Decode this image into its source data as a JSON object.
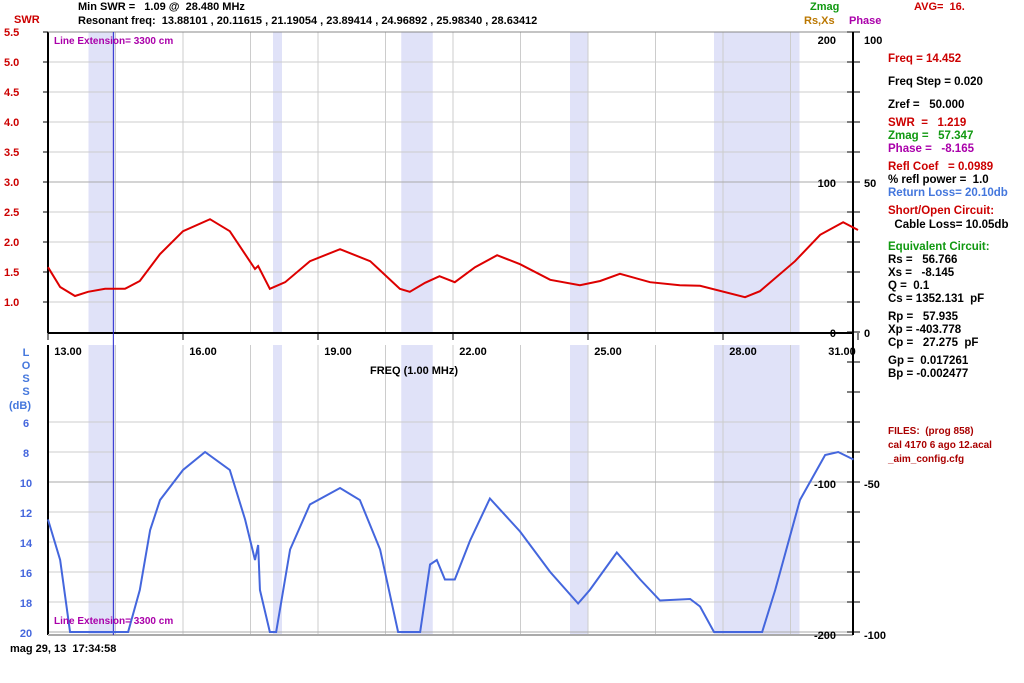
{
  "header": {
    "min_swr": "Min SWR =   1.09 @  28.480 MHz",
    "resonant": "Resonant freq:  13.88101 , 20.11615 , 21.19054 , 23.89414 , 24.96892 , 25.98340 , 28.63412",
    "swr_label": "SWR",
    "zmag_label": "Zmag",
    "rsxs_label": "Rs,Xs",
    "phase_label": "Phase",
    "avg": "AVG=  16."
  },
  "line_extension": "Line Extension= 3300 cm",
  "timestamp": "mag 29, 13  17:34:58",
  "readout": {
    "freq": "Freq = 14.452",
    "freq_step": "Freq Step = 0.020",
    "zref": "Zref =   50.000",
    "swr": "SWR  =   1.219",
    "zmag": "Zmag =   57.347",
    "phase": "Phase =   -8.165",
    "refl_coef": "Refl Coef   = 0.0989",
    "refl_power": "% refl power =  1.0",
    "return_loss": "Return Loss= 20.10db",
    "short_open": "Short/Open Circuit:",
    "cable_loss": "  Cable Loss= 10.05db",
    "equiv": "Equivalent Circuit:",
    "rs": "Rs =   56.766",
    "xs": "Xs =   -8.145",
    "q": "Q =  0.1",
    "cs": "Cs = 1352.131  pF",
    "rp": "Rp =   57.935",
    "xp": "Xp = -403.778",
    "cp": "Cp =   27.275  pF",
    "gp": "Gp =  0.017261",
    "bp": "Bp = -0.002477"
  },
  "files": {
    "title": "FILES:  (prog 858)",
    "cal": "cal 4170 6 ago 12.acal",
    "config": "_aim_config.cfg"
  },
  "colors": {
    "swr": "#dd0000",
    "loss": "#4466dd",
    "band": "#e0e2f8",
    "cursor": "#2222cc"
  },
  "chart_data": [
    {
      "type": "line",
      "xlabel": "FREQ (1.00 MHz)",
      "ylabel": "SWR",
      "xlim": [
        13,
        31
      ],
      "ylim": [
        0.5,
        5.5
      ],
      "xticks": [
        "13.00",
        "16.00",
        "19.00",
        "22.00",
        "25.00",
        "28.00",
        "31.00"
      ],
      "yticks": [
        "5.5",
        "5.0",
        "4.5",
        "4.0",
        "3.5",
        "3.0",
        "2.5",
        "2.0",
        "1.5",
        "1.0"
      ],
      "right_ticks_inner": [
        "200",
        "100",
        "0"
      ],
      "right_ticks_outer": [
        "100",
        "50",
        "0"
      ],
      "cursor_freq": 14.452,
      "bands": [
        [
          13.9,
          14.5
        ],
        [
          18.0,
          18.2
        ],
        [
          20.85,
          21.55
        ],
        [
          24.6,
          25.0
        ],
        [
          27.8,
          29.7
        ]
      ],
      "x": [
        13.0,
        13.27,
        13.6,
        13.89,
        14.27,
        14.71,
        15.04,
        15.49,
        16.0,
        16.6,
        17.04,
        17.6,
        17.67,
        17.93,
        18.27,
        18.82,
        19.49,
        20.16,
        20.82,
        21.04,
        21.38,
        21.7,
        22.04,
        22.49,
        22.98,
        23.49,
        24.16,
        24.82,
        25.27,
        25.71,
        26.38,
        27.04,
        27.49,
        28.49,
        28.82,
        29.6,
        30.16,
        30.67,
        31.0
      ],
      "y": [
        1.58,
        1.25,
        1.1,
        1.17,
        1.22,
        1.22,
        1.35,
        1.8,
        2.18,
        2.38,
        2.18,
        1.55,
        1.6,
        1.22,
        1.33,
        1.68,
        1.88,
        1.68,
        1.22,
        1.17,
        1.32,
        1.43,
        1.33,
        1.58,
        1.78,
        1.63,
        1.37,
        1.28,
        1.35,
        1.47,
        1.33,
        1.28,
        1.27,
        1.08,
        1.18,
        1.68,
        2.12,
        2.33,
        2.2
      ]
    },
    {
      "type": "line",
      "ylabel": "LOSS (dB)",
      "xlim": [
        13,
        31
      ],
      "ylim": [
        1,
        20
      ],
      "yticks": [
        "6",
        "8",
        "10",
        "12",
        "14",
        "16",
        "18",
        "20"
      ],
      "right_ticks_inner": [
        "-100",
        "-200"
      ],
      "right_ticks_outer": [
        "-50",
        "-100"
      ],
      "x": [
        13.0,
        13.27,
        13.49,
        14.78,
        15.04,
        15.27,
        15.49,
        16.0,
        16.49,
        17.04,
        17.38,
        17.6,
        17.67,
        17.71,
        17.93,
        18.07,
        18.38,
        18.82,
        19.49,
        19.93,
        20.38,
        20.78,
        21.27,
        21.49,
        21.64,
        21.82,
        22.04,
        22.38,
        22.82,
        23.49,
        24.16,
        24.78,
        25.04,
        25.64,
        26.16,
        26.6,
        27.27,
        27.49,
        27.8,
        28.87,
        29.16,
        29.71,
        30.27,
        30.56,
        30.9
      ],
      "y": [
        12.5,
        15.2,
        20,
        20,
        17.2,
        13.2,
        11.2,
        9.2,
        8.0,
        9.2,
        12.5,
        15.2,
        14.2,
        17.2,
        20,
        20,
        14.5,
        11.5,
        10.4,
        11.2,
        14.5,
        20,
        20,
        15.5,
        15.2,
        16.5,
        16.5,
        13.9,
        11.1,
        13.3,
        16.0,
        18.1,
        17.2,
        14.7,
        16.5,
        17.9,
        17.8,
        18.3,
        20,
        20,
        17.2,
        11.2,
        8.2,
        8.0,
        8.5
      ]
    }
  ]
}
